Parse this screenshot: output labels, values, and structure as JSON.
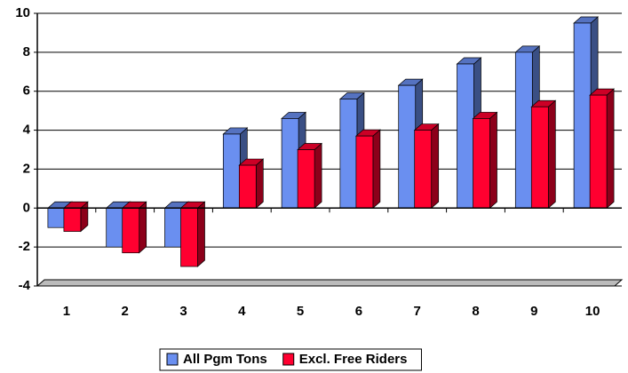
{
  "chart_data": {
    "type": "bar3d",
    "categories": [
      "1",
      "2",
      "3",
      "4",
      "5",
      "6",
      "7",
      "8",
      "9",
      "10"
    ],
    "series": [
      {
        "name": "All Pgm Tons",
        "color": "#6a8ff0",
        "values": [
          -1.0,
          -2.0,
          -2.0,
          3.8,
          4.6,
          5.6,
          6.3,
          7.4,
          8.0,
          9.5
        ]
      },
      {
        "name": "Excl. Free Riders",
        "color": "#ff0030",
        "values": [
          -1.2,
          -2.3,
          -3.0,
          2.2,
          3.0,
          3.7,
          4.0,
          4.6,
          5.2,
          5.8
        ]
      }
    ],
    "ylim": [
      -4,
      10
    ],
    "yticks": [
      -4,
      -2,
      0,
      2,
      4,
      6,
      8,
      10
    ],
    "grid": true,
    "legend": "bottom"
  }
}
